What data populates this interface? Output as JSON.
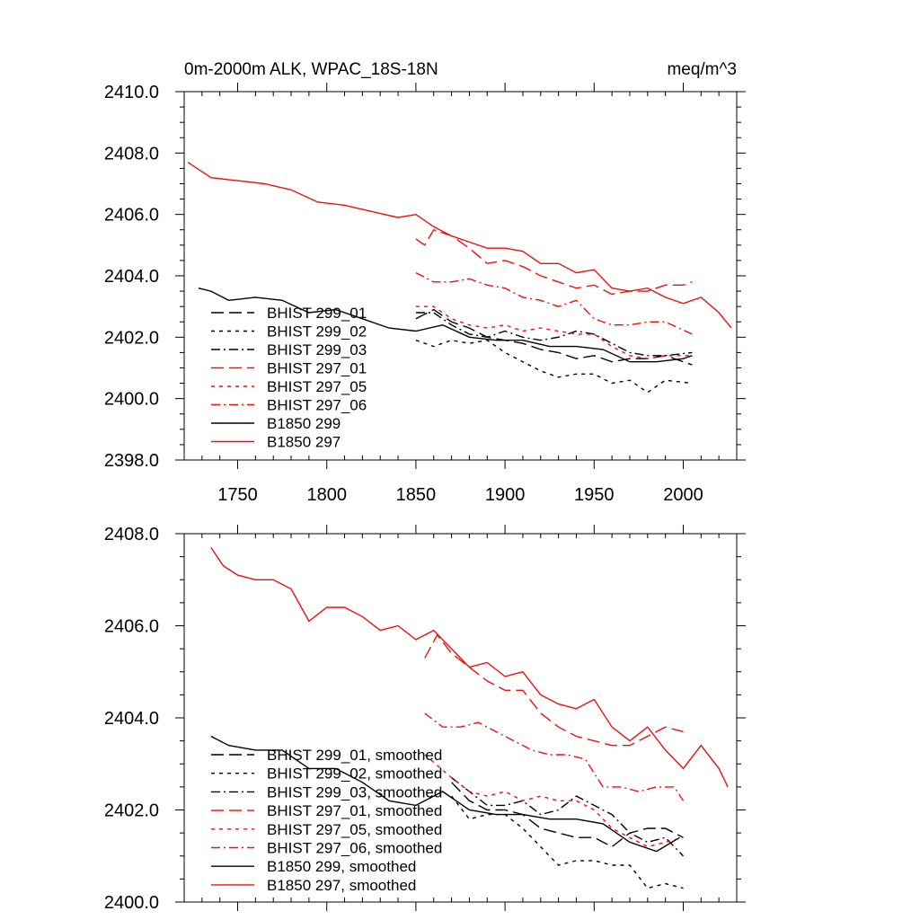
{
  "figure": {
    "line_color_black": "#000000",
    "line_color_red": "#e8120f"
  },
  "chart_data": [
    {
      "type": "line",
      "title": "0m-2000m ALK, WPAC_18S-18N",
      "units": "meq/m^3",
      "xlim": [
        1720,
        2030
      ],
      "ylim": [
        2398,
        2410
      ],
      "xticks": [
        1750,
        1800,
        1850,
        1900,
        1950,
        2000
      ],
      "xtick_labels": [
        "1750",
        "1800",
        "1850",
        "1900",
        "1950",
        "2000"
      ],
      "yticks": [
        2398,
        2400,
        2402,
        2404,
        2406,
        2408,
        2410
      ],
      "ytick_labels": [
        "2398.0",
        "2400.0",
        "2402.0",
        "2404.0",
        "2406.0",
        "2408.0",
        "2410.0"
      ],
      "legend_position": "lower-left",
      "series": [
        {
          "name": "BHIST 299_01",
          "color": "#000000",
          "dash": "long-dash",
          "x": [
            1850,
            1860,
            1870,
            1880,
            1890,
            1900,
            1910,
            1920,
            1930,
            1940,
            1950,
            1960,
            1970,
            1980,
            1990,
            2005
          ],
          "y": [
            2402.6,
            2402.9,
            2402.5,
            2402.3,
            2402.0,
            2401.9,
            2401.8,
            2401.6,
            2401.5,
            2401.3,
            2401.4,
            2401.2,
            2401.3,
            2401.3,
            2401.4,
            2401.1
          ]
        },
        {
          "name": "BHIST 299_02",
          "color": "#000000",
          "dash": "short-dash",
          "x": [
            1850,
            1860,
            1870,
            1880,
            1890,
            1900,
            1910,
            1920,
            1930,
            1940,
            1950,
            1960,
            1970,
            1980,
            1990,
            2005
          ],
          "y": [
            2401.9,
            2401.7,
            2401.9,
            2401.8,
            2401.9,
            2401.5,
            2401.2,
            2400.9,
            2400.7,
            2400.8,
            2400.8,
            2400.5,
            2400.6,
            2400.2,
            2400.6,
            2400.5
          ]
        },
        {
          "name": "BHIST 299_03",
          "color": "#000000",
          "dash": "dash-dot",
          "x": [
            1850,
            1860,
            1870,
            1880,
            1890,
            1900,
            1910,
            1920,
            1930,
            1940,
            1950,
            1960,
            1970,
            1980,
            1990,
            2005
          ],
          "y": [
            2402.8,
            2402.8,
            2402.4,
            2402.1,
            2402.0,
            2402.2,
            2402.0,
            2401.9,
            2402.0,
            2402.2,
            2402.1,
            2401.8,
            2401.5,
            2401.4,
            2401.4,
            2401.5
          ]
        },
        {
          "name": "BHIST 297_01",
          "color": "#e8120f",
          "dash": "long-dash",
          "x": [
            1850,
            1855,
            1860,
            1870,
            1880,
            1890,
            1900,
            1910,
            1920,
            1930,
            1940,
            1950,
            1960,
            1970,
            1980,
            1990,
            2000,
            2005
          ],
          "y": [
            2405.2,
            2405.0,
            2405.5,
            2405.3,
            2404.9,
            2404.4,
            2404.5,
            2404.3,
            2404.0,
            2403.8,
            2403.6,
            2403.7,
            2403.4,
            2403.5,
            2403.5,
            2403.7,
            2403.7,
            2403.8
          ]
        },
        {
          "name": "BHIST 297_05",
          "color": "#e8120f",
          "dash": "short-dash",
          "x": [
            1850,
            1860,
            1870,
            1880,
            1890,
            1900,
            1910,
            1920,
            1930,
            1940,
            1950,
            1960,
            1970,
            1980,
            1990,
            2005
          ],
          "y": [
            2403.0,
            2403.0,
            2402.6,
            2402.4,
            2402.3,
            2402.4,
            2402.2,
            2402.3,
            2402.2,
            2402.1,
            2402.1,
            2401.7,
            2401.4,
            2401.3,
            2401.4,
            2401.4
          ]
        },
        {
          "name": "BHIST 297_06",
          "color": "#e8120f",
          "dash": "dash-dot",
          "x": [
            1850,
            1860,
            1870,
            1880,
            1890,
            1900,
            1910,
            1920,
            1930,
            1940,
            1950,
            1960,
            1970,
            1980,
            1990,
            2005
          ],
          "y": [
            2404.1,
            2403.8,
            2403.8,
            2403.9,
            2403.7,
            2403.6,
            2403.3,
            2403.2,
            2403.0,
            2403.2,
            2402.6,
            2402.4,
            2402.4,
            2402.5,
            2402.5,
            2402.1
          ]
        },
        {
          "name": "B1850 299",
          "color": "#000000",
          "dash": "solid",
          "x": [
            1728,
            1735,
            1745,
            1760,
            1775,
            1790,
            1805,
            1820,
            1835,
            1850,
            1865,
            1880,
            1895,
            1910,
            1925,
            1940,
            1955,
            1970,
            1985,
            2000,
            2005
          ],
          "y": [
            2403.6,
            2403.5,
            2403.2,
            2403.3,
            2403.2,
            2402.8,
            2402.9,
            2402.6,
            2402.3,
            2402.2,
            2402.4,
            2402.0,
            2401.9,
            2401.9,
            2401.7,
            2401.7,
            2401.6,
            2401.2,
            2401.2,
            2401.3,
            2401.4
          ]
        },
        {
          "name": "B1850 297",
          "color": "#e8120f",
          "dash": "solid",
          "x": [
            1722,
            1735,
            1750,
            1765,
            1780,
            1795,
            1810,
            1825,
            1840,
            1850,
            1860,
            1870,
            1880,
            1890,
            1900,
            1910,
            1920,
            1930,
            1940,
            1950,
            1960,
            1970,
            1980,
            1990,
            2000,
            2010,
            2020,
            2027
          ],
          "y": [
            2407.7,
            2407.2,
            2407.1,
            2407.0,
            2406.8,
            2406.4,
            2406.3,
            2406.1,
            2405.9,
            2406.0,
            2405.6,
            2405.3,
            2405.1,
            2404.9,
            2404.9,
            2404.8,
            2404.4,
            2404.4,
            2404.1,
            2404.2,
            2403.6,
            2403.5,
            2403.6,
            2403.3,
            2403.1,
            2403.3,
            2402.8,
            2402.3
          ]
        }
      ],
      "legend": [
        "BHIST 299_01",
        "BHIST 299_02",
        "BHIST 299_03",
        "BHIST 297_01",
        "BHIST 297_05",
        "BHIST 297_06",
        "B1850 299",
        "B1850 297"
      ]
    },
    {
      "type": "line",
      "title": "",
      "xlim": [
        1720,
        2030
      ],
      "ylim": [
        2400,
        2408
      ],
      "xticks": [
        1750,
        1800,
        1850,
        1900,
        1950,
        2000
      ],
      "yticks": [
        2400,
        2402,
        2404,
        2406,
        2408
      ],
      "ytick_labels": [
        "2400.0",
        "2402.0",
        "2404.0",
        "2406.0",
        "2408.0"
      ],
      "legend_position": "lower-left",
      "series": [
        {
          "name": "BHIST 299_01, smoothed",
          "color": "#000000",
          "dash": "long-dash",
          "x": [
            1870,
            1880,
            1890,
            1900,
            1910,
            1920,
            1930,
            1940,
            1950,
            1960,
            1970,
            1980,
            1990,
            2000
          ],
          "y": [
            2402.6,
            2402.2,
            2402.0,
            2402.0,
            2401.9,
            2401.6,
            2401.5,
            2401.4,
            2401.4,
            2401.2,
            2401.5,
            2401.6,
            2401.6,
            2401.4
          ]
        },
        {
          "name": "BHIST 299_02, smoothed",
          "color": "#000000",
          "dash": "short-dash",
          "x": [
            1870,
            1880,
            1890,
            1900,
            1910,
            1920,
            1930,
            1940,
            1950,
            1960,
            1970,
            1980,
            1990,
            2000
          ],
          "y": [
            2402.3,
            2401.8,
            2401.9,
            2401.9,
            2401.6,
            2401.2,
            2400.8,
            2400.9,
            2400.9,
            2400.8,
            2400.8,
            2400.3,
            2400.4,
            2400.3
          ]
        },
        {
          "name": "BHIST 299_03, smoothed",
          "color": "#000000",
          "dash": "dash-dot",
          "x": [
            1870,
            1880,
            1890,
            1900,
            1910,
            1920,
            1930,
            1940,
            1950,
            1960,
            1970,
            1980,
            1990,
            2000
          ],
          "y": [
            2402.7,
            2402.4,
            2402.1,
            2402.1,
            2402.2,
            2401.9,
            2402.0,
            2402.3,
            2402.1,
            2401.9,
            2401.5,
            2401.3,
            2401.4,
            2401.0
          ]
        },
        {
          "name": "BHIST 297_01, smoothed",
          "color": "#e8120f",
          "dash": "long-dash",
          "x": [
            1855,
            1862,
            1870,
            1880,
            1890,
            1900,
            1910,
            1920,
            1930,
            1940,
            1950,
            1960,
            1970,
            1980,
            1990,
            2000
          ],
          "y": [
            2405.3,
            2405.8,
            2405.4,
            2405.1,
            2404.8,
            2404.6,
            2404.6,
            2404.1,
            2403.8,
            2403.6,
            2403.5,
            2403.4,
            2403.4,
            2403.6,
            2403.8,
            2403.7
          ]
        },
        {
          "name": "BHIST 297_05, smoothed",
          "color": "#e8120f",
          "dash": "short-dash",
          "x": [
            1855,
            1870,
            1880,
            1890,
            1900,
            1910,
            1920,
            1930,
            1940,
            1950,
            1960,
            1970,
            1980,
            1990,
            2000
          ],
          "y": [
            2403.2,
            2402.7,
            2402.4,
            2402.3,
            2402.4,
            2402.2,
            2402.3,
            2402.2,
            2402.2,
            2402.0,
            2401.6,
            2401.4,
            2401.2,
            2401.3,
            2401.4
          ]
        },
        {
          "name": "BHIST 297_06, smoothed",
          "color": "#e8120f",
          "dash": "dash-dot",
          "x": [
            1855,
            1865,
            1875,
            1885,
            1895,
            1905,
            1915,
            1925,
            1935,
            1945,
            1955,
            1965,
            1975,
            1985,
            1995,
            2000
          ],
          "y": [
            2404.1,
            2403.8,
            2403.8,
            2403.9,
            2403.7,
            2403.5,
            2403.3,
            2403.2,
            2403.2,
            2403.1,
            2402.5,
            2402.5,
            2402.4,
            2402.5,
            2402.5,
            2402.2
          ]
        },
        {
          "name": "B1850 299, smoothed",
          "color": "#000000",
          "dash": "solid",
          "x": [
            1735,
            1745,
            1760,
            1775,
            1790,
            1805,
            1820,
            1835,
            1850,
            1865,
            1880,
            1895,
            1910,
            1925,
            1940,
            1955,
            1970,
            1985,
            1998
          ],
          "y": [
            2403.6,
            2403.4,
            2403.3,
            2403.3,
            2402.9,
            2402.9,
            2402.6,
            2402.2,
            2402.1,
            2402.4,
            2402.0,
            2401.9,
            2401.9,
            2401.8,
            2401.8,
            2401.7,
            2401.3,
            2401.1,
            2401.4
          ]
        },
        {
          "name": "B1850 297, smoothed",
          "color": "#e8120f",
          "dash": "solid",
          "x": [
            1735,
            1742,
            1750,
            1760,
            1770,
            1780,
            1790,
            1800,
            1810,
            1820,
            1830,
            1840,
            1850,
            1860,
            1870,
            1880,
            1890,
            1900,
            1910,
            1920,
            1930,
            1940,
            1950,
            1960,
            1970,
            1980,
            1990,
            2000,
            2010,
            2020,
            2025
          ],
          "y": [
            2407.7,
            2407.3,
            2407.1,
            2407.0,
            2407.0,
            2406.8,
            2406.1,
            2406.4,
            2406.4,
            2406.2,
            2405.9,
            2406.0,
            2405.7,
            2405.9,
            2405.5,
            2405.1,
            2405.2,
            2404.9,
            2405.0,
            2404.5,
            2404.3,
            2404.2,
            2404.4,
            2403.8,
            2403.5,
            2403.8,
            2403.3,
            2402.9,
            2403.4,
            2402.9,
            2402.5
          ]
        }
      ],
      "legend": [
        "BHIST 299_01, smoothed",
        "BHIST 299_02, smoothed",
        "BHIST 299_03, smoothed",
        "BHIST 297_01, smoothed",
        "BHIST 297_05, smoothed",
        "BHIST 297_06, smoothed",
        "B1850 299, smoothed",
        "B1850 297, smoothed"
      ]
    }
  ]
}
